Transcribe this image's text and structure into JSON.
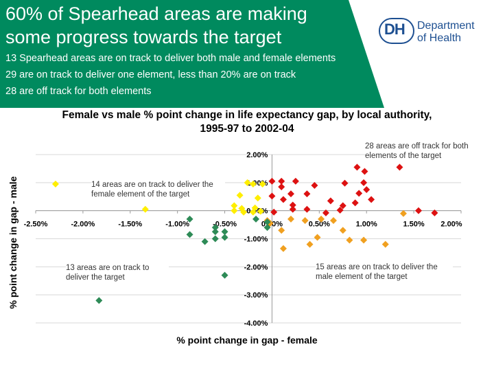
{
  "header": {
    "title_line1": "60% of Spearhead areas are making",
    "title_line2": "some progress towards the target",
    "sub1": "13 Spearhead areas are on track to deliver both male and female elements",
    "sub2": "29 are on track to deliver one element, less than 20% are on track",
    "sub3": "28 are off track for both elements",
    "bg_color": "#008a5e"
  },
  "logo": {
    "mark": "DH",
    "line1": "Department",
    "line2": "of Health"
  },
  "chart_data": {
    "type": "scatter",
    "title_line1": "Female vs male % point change in life expectancy gap, by local authority,",
    "title_line2": "1995-97 to 2002-04",
    "xlabel": "% point change in gap - female",
    "ylabel": "% point change in gap - male",
    "xlim": [
      -2.5,
      2.0
    ],
    "ylim": [
      -4.0,
      2.0
    ],
    "x_ticks": [
      "-2.50%",
      "-2.00%",
      "-1.50%",
      "-1.00%",
      "-0.50%",
      "0.00%",
      "0.50%",
      "1.00%",
      "1.50%",
      "2.00%"
    ],
    "y_ticks": [
      "2.00%",
      "1.00%",
      "0.00%",
      "-1.00%",
      "-2.00%",
      "-3.00%",
      "-4.00%"
    ],
    "grid": true,
    "annotations": [
      {
        "id": "top-right",
        "text": "28 areas are off track for both elements of the target"
      },
      {
        "id": "top-left",
        "text": "14 areas are on track to deliver the female element of the target"
      },
      {
        "id": "bottom-left",
        "text": "13 areas are on track to deliver the target"
      },
      {
        "id": "bottom-right",
        "text": "15 areas are on track to deliver the male element of the target"
      }
    ],
    "series": [
      {
        "color": "#dd1111",
        "points": [
          [
            0.0,
            1.05
          ],
          [
            0.1,
            1.05
          ],
          [
            0.25,
            1.05
          ],
          [
            0.1,
            0.85
          ],
          [
            0.2,
            0.6
          ],
          [
            0.45,
            0.9
          ],
          [
            0.9,
            1.55
          ],
          [
            0.98,
            1.4
          ],
          [
            1.35,
            1.55
          ],
          [
            0.0,
            0.52
          ],
          [
            0.12,
            0.4
          ],
          [
            0.22,
            0.2
          ],
          [
            0.22,
            0.05
          ],
          [
            0.37,
            0.05
          ],
          [
            0.37,
            0.6
          ],
          [
            0.62,
            0.35
          ],
          [
            0.75,
            0.18
          ],
          [
            0.88,
            0.28
          ],
          [
            0.97,
            1.0
          ],
          [
            0.77,
            0.98
          ],
          [
            0.92,
            0.62
          ],
          [
            1.05,
            0.4
          ],
          [
            1.0,
            0.75
          ],
          [
            1.55,
            0.0
          ],
          [
            1.72,
            -0.08
          ],
          [
            0.57,
            -0.08
          ],
          [
            0.72,
            0.02
          ],
          [
            0.02,
            -0.05
          ]
        ]
      },
      {
        "color": "#f0a020",
        "points": [
          [
            -0.05,
            -0.35
          ],
          [
            -0.02,
            -0.45
          ],
          [
            0.2,
            -0.3
          ],
          [
            0.1,
            -0.7
          ],
          [
            0.35,
            -0.35
          ],
          [
            0.52,
            -0.3
          ],
          [
            0.65,
            -0.35
          ],
          [
            0.48,
            -0.95
          ],
          [
            0.4,
            -1.2
          ],
          [
            0.75,
            -0.7
          ],
          [
            0.82,
            -1.05
          ],
          [
            0.97,
            -1.05
          ],
          [
            1.2,
            -1.2
          ],
          [
            1.39,
            -0.1
          ],
          [
            0.12,
            -1.35
          ]
        ]
      },
      {
        "color": "#ffee00",
        "points": [
          [
            -2.29,
            0.95
          ],
          [
            -0.26,
            1.0
          ],
          [
            -0.2,
            0.95
          ],
          [
            -0.1,
            0.95
          ],
          [
            -0.34,
            0.55
          ],
          [
            -0.15,
            0.45
          ],
          [
            -0.4,
            0.18
          ],
          [
            -0.32,
            0.08
          ],
          [
            -0.18,
            0.1
          ],
          [
            -0.12,
            -0.02
          ],
          [
            -1.34,
            0.05
          ],
          [
            -0.4,
            0.0
          ],
          [
            -0.3,
            -0.05
          ],
          [
            -0.2,
            -0.05
          ]
        ]
      },
      {
        "color": "#2e8b57",
        "points": [
          [
            -0.87,
            -0.3
          ],
          [
            -0.6,
            -0.6
          ],
          [
            -0.6,
            -0.75
          ],
          [
            -0.5,
            -0.75
          ],
          [
            -0.5,
            -0.95
          ],
          [
            -0.71,
            -1.1
          ],
          [
            -0.6,
            -1.0
          ],
          [
            -0.87,
            -0.85
          ],
          [
            -0.17,
            -0.3
          ],
          [
            -0.05,
            -0.4
          ],
          [
            -0.05,
            -0.6
          ],
          [
            -0.5,
            -2.3
          ],
          [
            -1.83,
            -3.2
          ]
        ]
      }
    ]
  }
}
